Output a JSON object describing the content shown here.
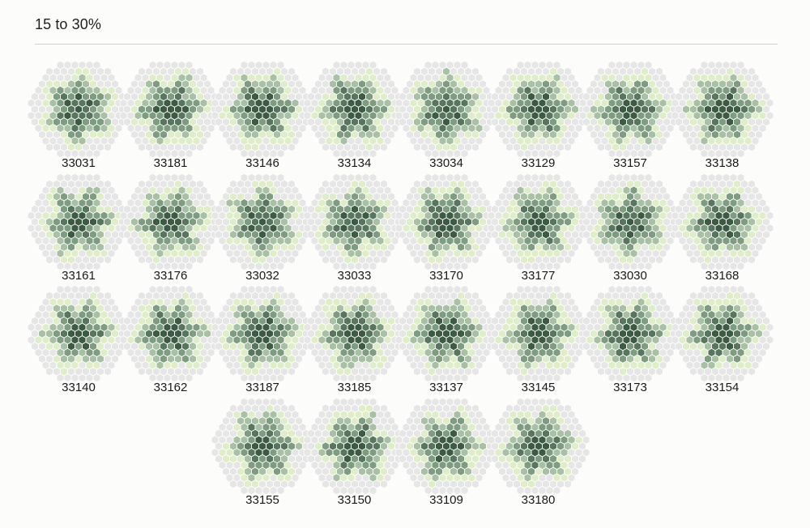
{
  "header": {
    "title": "15 to 30%"
  },
  "palette": [
    "#e6e6e6",
    "#dfeec8",
    "#a8c0a4",
    "#7d9c80",
    "#57765d",
    "#3d5a43"
  ],
  "rows": [
    [
      "33031",
      "33181",
      "33146",
      "33134",
      "33034",
      "33129",
      "33157",
      "33138"
    ],
    [
      "33161",
      "33176",
      "33032",
      "33033",
      "33170",
      "33177",
      "33030",
      "33168"
    ],
    [
      "33140",
      "33162",
      "33187",
      "33185",
      "33137",
      "33145",
      "33173",
      "33154"
    ],
    [
      "33155",
      "33150",
      "33109",
      "33180"
    ]
  ]
}
